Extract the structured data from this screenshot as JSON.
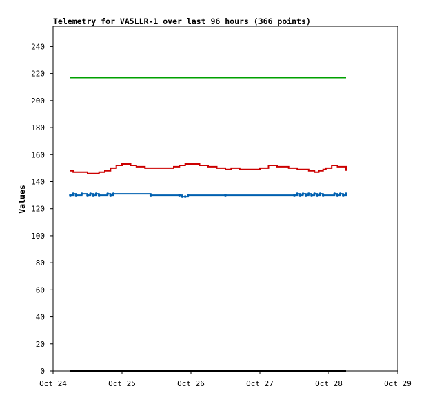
{
  "colors": {
    "background": "#ffffff",
    "frame": "#000000",
    "text": "#000000"
  },
  "chart_data": {
    "type": "line",
    "title": "Telemetry for VA5LLR-1 over last 96 hours (366 points)",
    "xlabel": "",
    "ylabel": "Values",
    "xlim": [
      "2022-10-24T00:00",
      "2022-10-29T00:00"
    ],
    "ylim": [
      0,
      255
    ],
    "y_ticks": [
      0,
      20,
      40,
      60,
      80,
      100,
      120,
      140,
      160,
      180,
      200,
      220,
      240
    ],
    "x_ticks": [
      {
        "date": "2022-10-24T00:00",
        "label": "Oct 24"
      },
      {
        "date": "2022-10-25T00:00",
        "label": "Oct 25"
      },
      {
        "date": "2022-10-26T00:00",
        "label": "Oct 26"
      },
      {
        "date": "2022-10-27T00:00",
        "label": "Oct 27"
      },
      {
        "date": "2022-10-28T00:00",
        "label": "Oct 28"
      },
      {
        "date": "2022-10-29T00:00",
        "label": "Oct 29"
      }
    ],
    "grid": false,
    "legend": "none",
    "series": [
      {
        "color": "#00a000",
        "marker": "none",
        "x": [
          "2022-10-24T06:00",
          "2022-10-28T06:00"
        ],
        "y": [
          217,
          217
        ]
      },
      {
        "color": "#cc0000",
        "marker": "none",
        "x": [
          "2022-10-24T06:00",
          "2022-10-24T07:00",
          "2022-10-24T10:00",
          "2022-10-24T12:00",
          "2022-10-24T15:00",
          "2022-10-24T16:00",
          "2022-10-24T18:00",
          "2022-10-24T20:00",
          "2022-10-24T22:00",
          "2022-10-25T00:00",
          "2022-10-25T03:00",
          "2022-10-25T05:00",
          "2022-10-25T08:00",
          "2022-10-25T12:00",
          "2022-10-25T16:00",
          "2022-10-25T18:00",
          "2022-10-25T20:00",
          "2022-10-25T22:00",
          "2022-10-26T00:00",
          "2022-10-26T03:00",
          "2022-10-26T06:00",
          "2022-10-26T09:00",
          "2022-10-26T12:00",
          "2022-10-26T14:00",
          "2022-10-26T17:00",
          "2022-10-26T20:00",
          "2022-10-26T22:00",
          "2022-10-27T00:00",
          "2022-10-27T03:00",
          "2022-10-27T06:00",
          "2022-10-27T10:00",
          "2022-10-27T13:00",
          "2022-10-27T17:00",
          "2022-10-27T19:00",
          "2022-10-27T20:30",
          "2022-10-27T22:00",
          "2022-10-27T23:00",
          "2022-10-28T01:00",
          "2022-10-28T03:00",
          "2022-10-28T06:00"
        ],
        "y": [
          148,
          147,
          147,
          146,
          146,
          147,
          148,
          150,
          152,
          153,
          152,
          151,
          150,
          150,
          150,
          151,
          152,
          153,
          153,
          152,
          151,
          150,
          149,
          150,
          149,
          149,
          149,
          150,
          152,
          151,
          150,
          149,
          148,
          147,
          148,
          149,
          150,
          152,
          151,
          148
        ]
      },
      {
        "color": "#0060b0",
        "marker": "dot",
        "x": [
          "2022-10-24T06:00",
          "2022-10-24T07:00",
          "2022-10-24T08:00",
          "2022-10-24T10:00",
          "2022-10-24T12:00",
          "2022-10-24T13:00",
          "2022-10-24T14:00",
          "2022-10-24T15:00",
          "2022-10-24T16:00",
          "2022-10-24T19:00",
          "2022-10-24T20:00",
          "2022-10-24T21:00",
          "2022-10-25T10:00",
          "2022-10-25T20:00",
          "2022-10-25T21:00",
          "2022-10-25T22:00",
          "2022-10-25T23:00",
          "2022-10-26T12:00",
          "2022-10-27T12:00",
          "2022-10-27T13:00",
          "2022-10-27T14:00",
          "2022-10-27T15:00",
          "2022-10-27T16:00",
          "2022-10-27T17:00",
          "2022-10-27T18:00",
          "2022-10-27T19:00",
          "2022-10-27T20:00",
          "2022-10-27T21:00",
          "2022-10-27T22:00",
          "2022-10-28T02:00",
          "2022-10-28T03:00",
          "2022-10-28T04:00",
          "2022-10-28T05:00",
          "2022-10-28T06:00"
        ],
        "y": [
          130,
          131,
          130,
          131,
          130,
          131,
          130,
          131,
          130,
          131,
          130,
          131,
          130,
          130,
          129,
          129,
          130,
          130,
          130,
          131,
          130,
          131,
          130,
          131,
          130,
          131,
          130,
          131,
          130,
          131,
          130,
          131,
          130,
          131
        ]
      },
      {
        "color": "#000000",
        "marker": "none",
        "x": [
          "2022-10-24T06:00",
          "2022-10-28T06:00"
        ],
        "y": [
          0,
          0
        ]
      }
    ]
  }
}
